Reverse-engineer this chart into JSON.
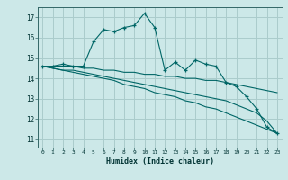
{
  "title": "",
  "xlabel": "Humidex (Indice chaleur)",
  "background_color": "#cce8e8",
  "grid_color": "#aacccc",
  "line_color": "#006666",
  "x_ticks": [
    0,
    1,
    2,
    3,
    4,
    5,
    6,
    7,
    8,
    9,
    10,
    11,
    12,
    13,
    14,
    15,
    16,
    17,
    18,
    19,
    20,
    21,
    22,
    23
  ],
  "y_ticks": [
    11,
    12,
    13,
    14,
    15,
    16,
    17
  ],
  "xlim": [
    -0.5,
    23.5
  ],
  "ylim": [
    10.6,
    17.5
  ],
  "series": {
    "main": [
      14.6,
      14.6,
      14.7,
      14.6,
      14.6,
      15.8,
      16.4,
      16.3,
      16.5,
      16.6,
      17.2,
      16.5,
      14.4,
      14.8,
      14.4,
      14.9,
      14.7,
      14.6,
      13.8,
      13.6,
      13.1,
      12.5,
      11.6,
      11.3
    ],
    "line2": [
      14.6,
      14.6,
      14.6,
      14.6,
      14.5,
      14.5,
      14.4,
      14.4,
      14.3,
      14.3,
      14.2,
      14.2,
      14.1,
      14.1,
      14.0,
      14.0,
      13.9,
      13.9,
      13.8,
      13.7,
      13.6,
      13.5,
      13.4,
      13.3
    ],
    "line3": [
      14.6,
      14.5,
      14.4,
      14.4,
      14.3,
      14.2,
      14.1,
      14.0,
      13.9,
      13.8,
      13.7,
      13.6,
      13.5,
      13.4,
      13.3,
      13.2,
      13.1,
      13.0,
      12.9,
      12.7,
      12.5,
      12.3,
      11.9,
      11.3
    ],
    "line4": [
      14.6,
      14.5,
      14.4,
      14.3,
      14.2,
      14.1,
      14.0,
      13.9,
      13.7,
      13.6,
      13.5,
      13.3,
      13.2,
      13.1,
      12.9,
      12.8,
      12.6,
      12.5,
      12.3,
      12.1,
      11.9,
      11.7,
      11.5,
      11.3
    ]
  }
}
